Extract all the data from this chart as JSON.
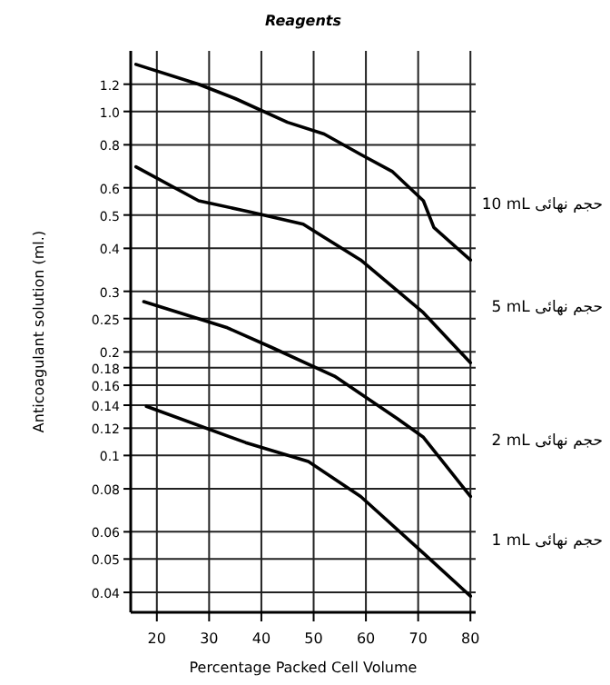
{
  "chart_data": {
    "type": "line",
    "title": "Reagents",
    "xlabel": "Percentage Packed Cell Volume",
    "ylabel": "Anticoagulant solution (ml.)",
    "log": "y",
    "grid": true,
    "legend": false,
    "marker": "none",
    "line_style": "solid",
    "xlim": [
      15,
      81
    ],
    "xticks": [
      20,
      30,
      40,
      50,
      60,
      70,
      80
    ],
    "ylim": [
      0.035,
      1.5
    ],
    "yticks": [
      1.2,
      {
        "value": 1.0,
        "label": "1.0"
      },
      0.8,
      0.6,
      0.5,
      0.4,
      0.3,
      0.25,
      0.2,
      0.18,
      0.16,
      0.14,
      0.12,
      0.1,
      0.08,
      0.06,
      0.05,
      0.04
    ],
    "series": [
      {
        "name": "10 mL حجم نهائی",
        "color": "#000000",
        "x": [
          16,
          28,
          35,
          45,
          52,
          59,
          65,
          71,
          73,
          80
        ],
        "values": [
          1.37,
          1.2,
          1.09,
          0.93,
          0.86,
          0.75,
          0.67,
          0.55,
          0.46,
          0.37
        ]
      },
      {
        "name": "5 mL حجم نهائی",
        "color": "#000000",
        "x": [
          16,
          28,
          38,
          48,
          59,
          71,
          80
        ],
        "values": [
          0.69,
          0.55,
          0.51,
          0.47,
          0.37,
          0.26,
          0.186
        ]
      },
      {
        "name": "2 mL حجم نهائی",
        "color": "#000000",
        "x": [
          17.5,
          33.5,
          42,
          54,
          66,
          71,
          80
        ],
        "values": [
          0.28,
          0.235,
          0.206,
          0.17,
          0.128,
          0.113,
          0.076
        ]
      },
      {
        "name": "1 mL حجم نهائی",
        "color": "#000000",
        "x": [
          18,
          37,
          49,
          59,
          71,
          80
        ],
        "values": [
          0.139,
          0.109,
          0.096,
          0.076,
          0.052,
          0.039
        ]
      }
    ]
  }
}
